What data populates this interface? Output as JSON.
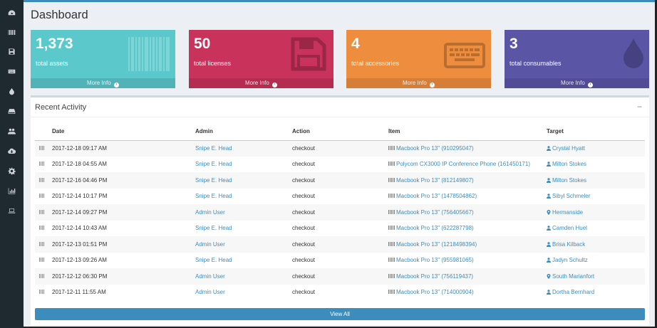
{
  "page": {
    "title": "Dashboard"
  },
  "sidebar": {
    "items": [
      {
        "icon": "dashboard-icon"
      },
      {
        "icon": "barcode-icon"
      },
      {
        "icon": "save-icon"
      },
      {
        "icon": "keyboard-icon"
      },
      {
        "icon": "tint-icon"
      },
      {
        "icon": "hdd-icon"
      },
      {
        "icon": "users-icon"
      },
      {
        "icon": "cloud-download-icon"
      },
      {
        "icon": "gear-icon"
      },
      {
        "icon": "bar-chart-icon"
      },
      {
        "icon": "laptop-icon"
      }
    ]
  },
  "boxes": [
    {
      "number": "1,373",
      "label": "total assets",
      "more": "More Info",
      "color": "#5bc8cc",
      "icon": "barcode-icon"
    },
    {
      "number": "50",
      "label": "total licenses",
      "more": "More Info",
      "color": "#c9325a",
      "icon": "save-icon"
    },
    {
      "number": "4",
      "label": "total accessories",
      "more": "More Info",
      "color": "#ef8d3e",
      "icon": "keyboard-icon"
    },
    {
      "number": "3",
      "label": "total consumables",
      "more": "More Info",
      "color": "#5b55a6",
      "icon": "tint-icon"
    }
  ],
  "activity": {
    "title": "Recent Activity",
    "collapse": "−",
    "columns": [
      "Date",
      "Admin",
      "Action",
      "Item",
      "Target"
    ],
    "rows": [
      {
        "date": "2017-12-18 09:17 AM",
        "admin": "Snipe E. Head",
        "action": "checkout",
        "item": "Macbook Pro 13\" (910295047)",
        "target": "Crystal Hyatt",
        "target_type": "user"
      },
      {
        "date": "2017-12-18 04:55 AM",
        "admin": "Snipe E. Head",
        "action": "checkout",
        "item": "Polycom CX3000 IP Conference Phone (161450171)",
        "target": "Milton Stokes",
        "target_type": "user"
      },
      {
        "date": "2017-12-16 04:46 PM",
        "admin": "Snipe E. Head",
        "action": "checkout",
        "item": "Macbook Pro 13\" (812149807)",
        "target": "Milton Stokes",
        "target_type": "user"
      },
      {
        "date": "2017-12-14 10:17 PM",
        "admin": "Snipe E. Head",
        "action": "checkout",
        "item": "Macbook Pro 13\" (1478504862)",
        "target": "Sibyl Schmeler",
        "target_type": "user"
      },
      {
        "date": "2017-12-14 09:27 PM",
        "admin": "Admin User",
        "action": "checkout",
        "item": "Macbook Pro 13\" (756405667)",
        "target": "Hermanside",
        "target_type": "location"
      },
      {
        "date": "2017-12-14 10:43 AM",
        "admin": "Snipe E. Head",
        "action": "checkout",
        "item": "Macbook Pro 13\" (622287798)",
        "target": "Camden Huel",
        "target_type": "user"
      },
      {
        "date": "2017-12-13 01:51 PM",
        "admin": "Admin User",
        "action": "checkout",
        "item": "Macbook Pro 13\" (1218498394)",
        "target": "Brisa Kilback",
        "target_type": "user"
      },
      {
        "date": "2017-12-13 09:26 AM",
        "admin": "Snipe E. Head",
        "action": "checkout",
        "item": "Macbook Pro 13\" (955981065)",
        "target": "Jadyn Schultz",
        "target_type": "user"
      },
      {
        "date": "2017-12-12 06:30 PM",
        "admin": "Admin User",
        "action": "checkout",
        "item": "Macbook Pro 13\" (756119437)",
        "target": "South Marianfort",
        "target_type": "location"
      },
      {
        "date": "2017-12-11 11:55 AM",
        "admin": "Admin User",
        "action": "checkout",
        "item": "Macbook Pro 13\" (714000904)",
        "target": "Dortha Bernhard",
        "target_type": "user"
      }
    ],
    "view_all": "View All"
  },
  "colors": {
    "link": "#3c8dbc",
    "sidebar": "#1f2a30",
    "background": "#ecf0f5"
  }
}
